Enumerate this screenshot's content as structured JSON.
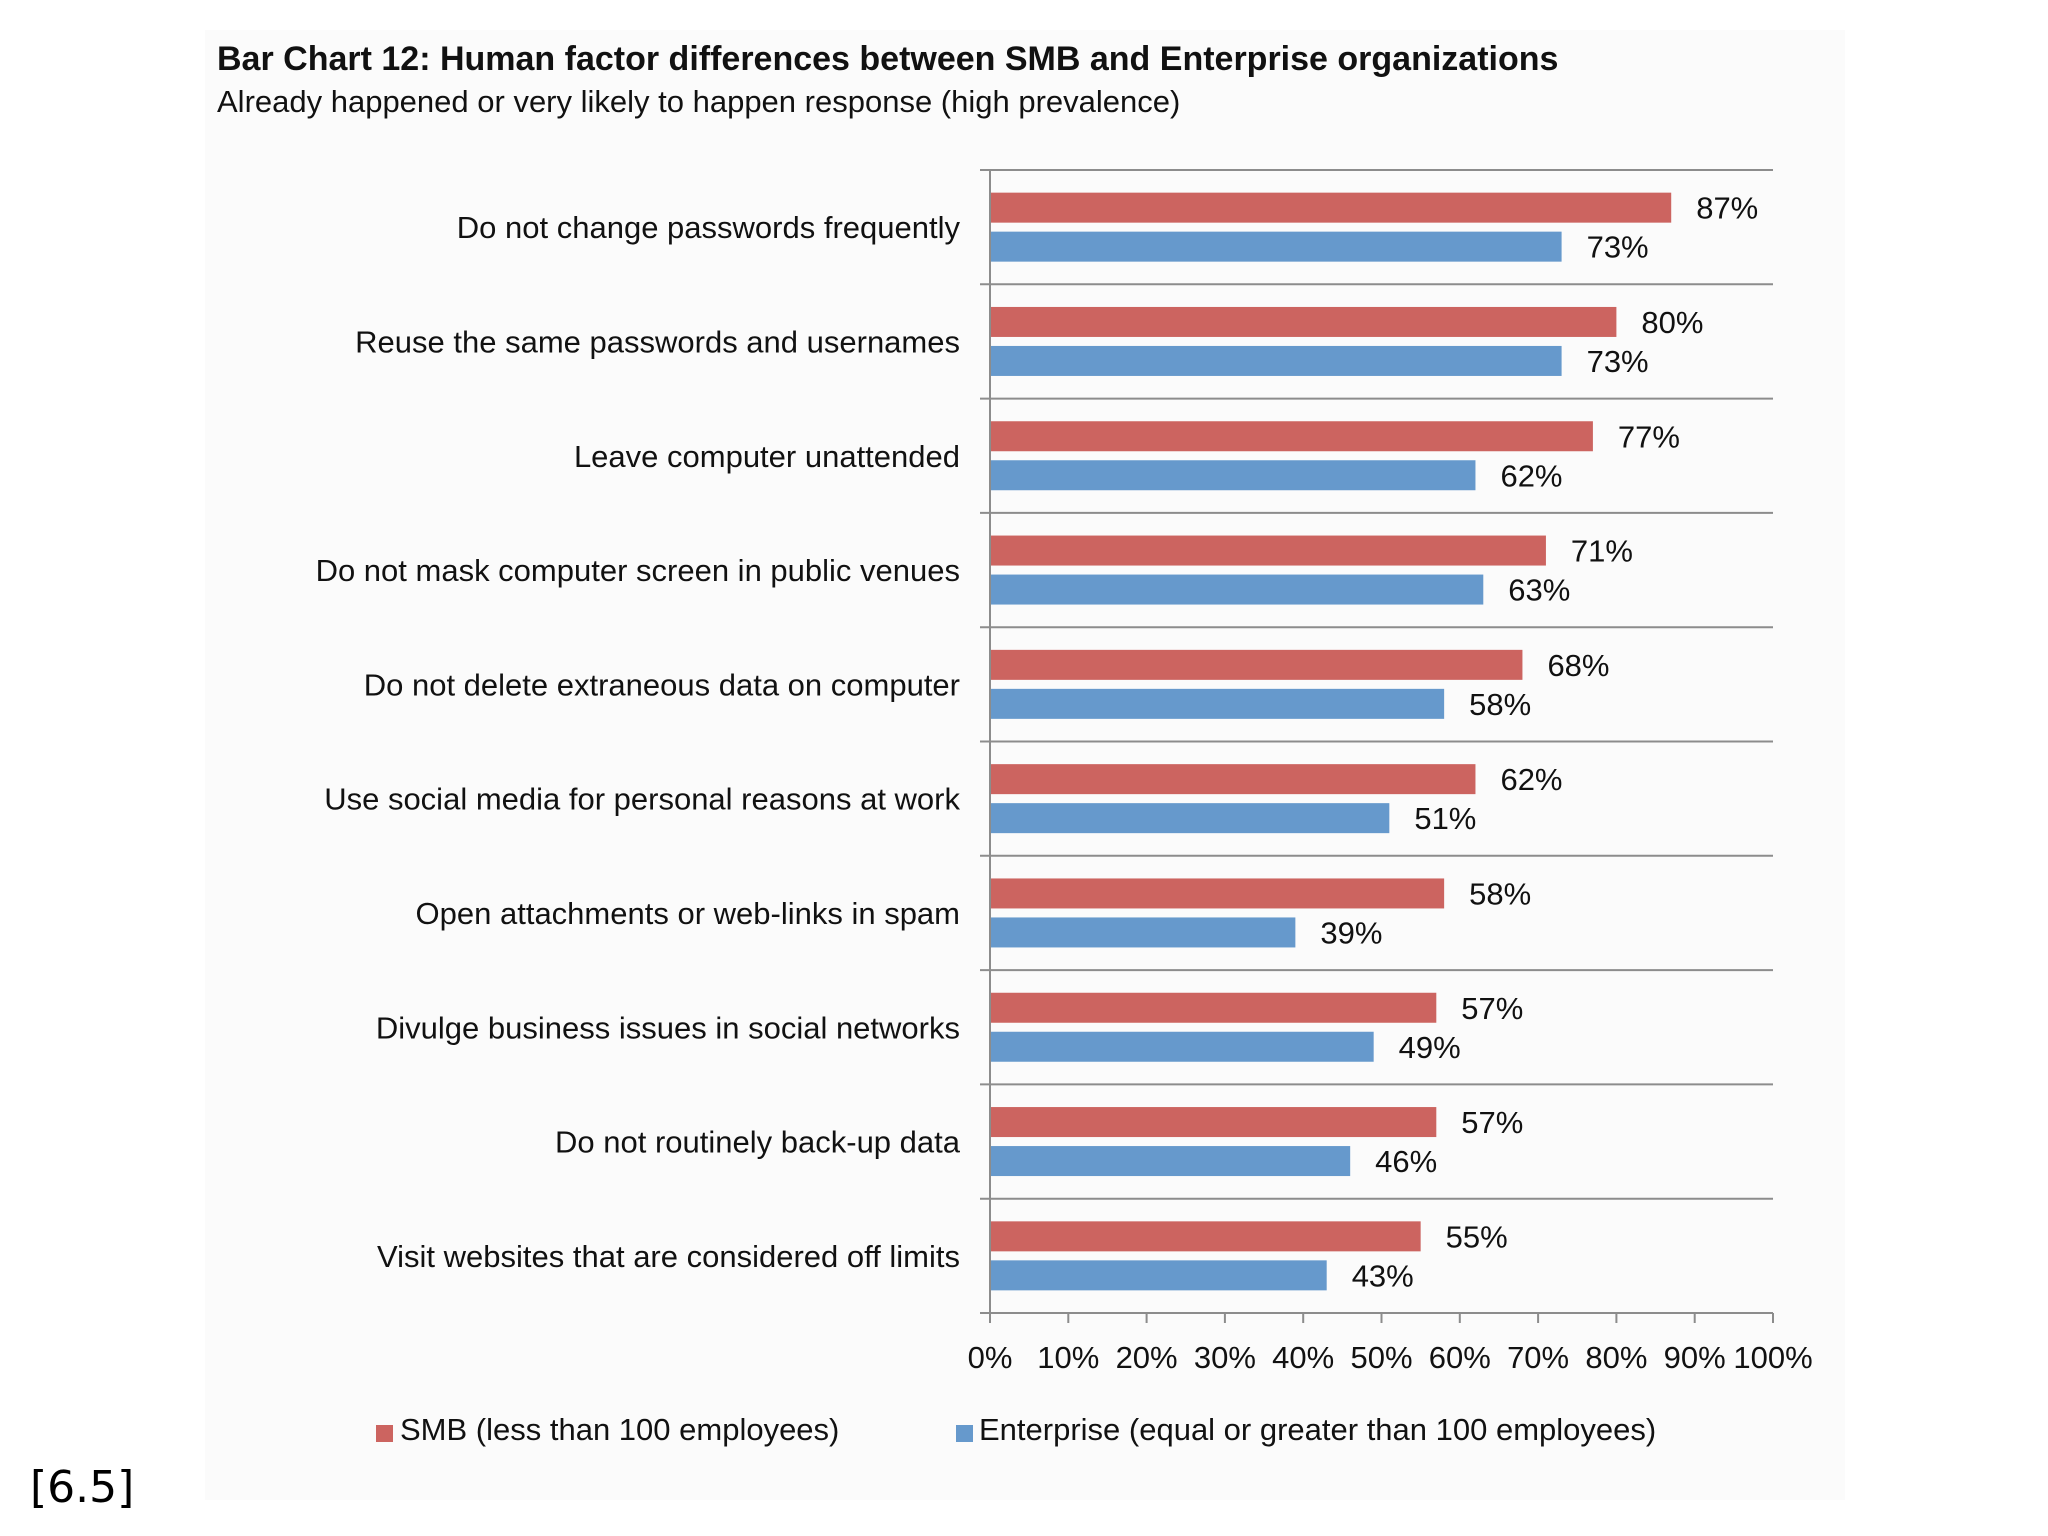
{
  "figure_ref": "[6.5]",
  "chart_data": {
    "type": "bar",
    "orientation": "horizontal",
    "title": "Bar Chart 12: Human factor differences between SMB and Enterprise organizations",
    "subtitle": "Already happened or very likely to happen response (high prevalence)",
    "xlabel": "",
    "ylabel": "",
    "xlim": [
      0,
      100
    ],
    "x_ticks": [
      "0%",
      "10%",
      "20%",
      "30%",
      "40%",
      "50%",
      "60%",
      "70%",
      "80%",
      "90%",
      "100%"
    ],
    "value_suffix": "%",
    "categories": [
      "Do not change passwords frequently",
      "Reuse the same passwords and usernames",
      "Leave computer unattended",
      "Do not mask computer screen in public venues",
      "Do not delete extraneous data on computer",
      "Use social media for personal reasons at work",
      "Open attachments or web-links in spam",
      "Divulge business issues in social networks",
      "Do not routinely back-up data",
      "Visit websites that are considered off limits"
    ],
    "series": [
      {
        "name": "SMB (less than 100 employees)",
        "color": "#cc6460",
        "values": [
          87,
          80,
          77,
          71,
          68,
          62,
          58,
          57,
          57,
          55
        ]
      },
      {
        "name": "Enterprise (equal or greater than 100 employees)",
        "color": "#6699cc",
        "values": [
          73,
          73,
          62,
          63,
          58,
          51,
          39,
          49,
          46,
          43
        ]
      }
    ],
    "legend_position": "bottom",
    "grid": "horizontal separators between categories"
  }
}
